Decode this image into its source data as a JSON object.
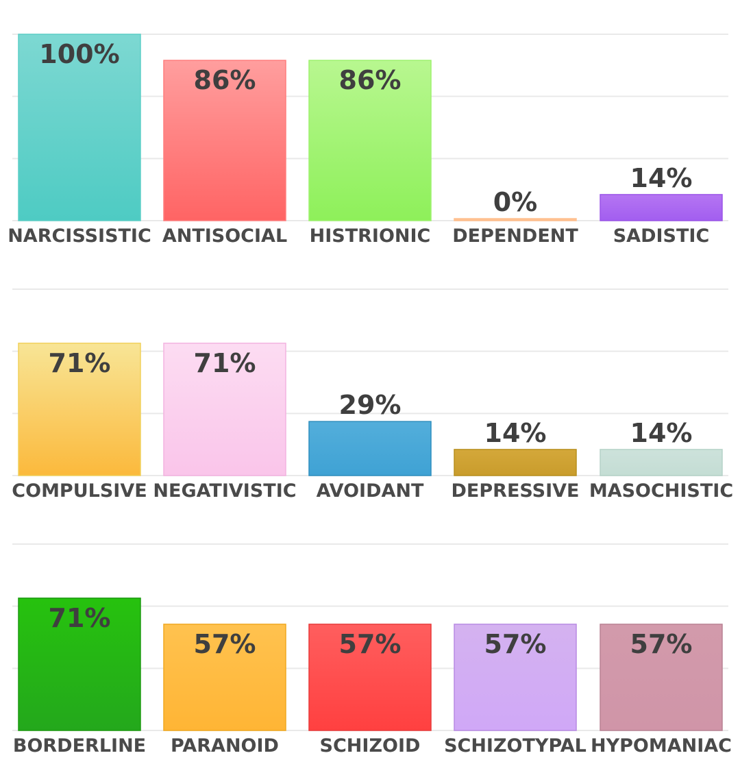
{
  "chart_data": [
    {
      "type": "bar",
      "categories": [
        "NARCISSISTIC",
        "ANTISOCIAL",
        "HISTRIONIC",
        "DEPENDENT",
        "SADISTIC"
      ],
      "values": [
        100,
        86,
        86,
        0,
        14
      ],
      "value_labels": [
        "100%",
        "86%",
        "86%",
        "0%",
        "14%"
      ],
      "colors": [
        [
          "#7dd8d2",
          "#4ecbc3"
        ],
        [
          "#ff9e9e",
          "#ff6464"
        ],
        [
          "#b8f790",
          "#8ef05a"
        ],
        [
          "#ffd0a8",
          "#ffb07a"
        ],
        [
          "#b575f2",
          "#a25ef0"
        ]
      ],
      "border_colors": [
        "#5ccfc7",
        "#ff7d7d",
        "#9ef26e",
        "#ffc08f",
        "#9b55e8"
      ],
      "ylim": [
        0,
        100
      ],
      "grid": true
    },
    {
      "type": "bar",
      "categories": [
        "COMPULSIVE",
        "NEGATIVISTIC",
        "AVOIDANT",
        "DEPRESSIVE",
        "MASOCHISTIC"
      ],
      "values": [
        71,
        71,
        29,
        14,
        14
      ],
      "value_labels": [
        "71%",
        "71%",
        "29%",
        "14%",
        "14%"
      ],
      "colors": [
        [
          "#f8e596",
          "#fbb93c"
        ],
        [
          "#fcdcf2",
          "#fac5ea"
        ],
        [
          "#53aedb",
          "#3fa2d4"
        ],
        [
          "#d4a83a",
          "#c99c2c"
        ],
        [
          "#cde2db",
          "#c4ddd4"
        ]
      ],
      "border_colors": [
        "#f1d15a",
        "#f3b3e0",
        "#2f8fbf",
        "#b8901f",
        "#b5d2c8"
      ],
      "ylim": [
        0,
        100
      ],
      "grid": true
    },
    {
      "type": "bar",
      "categories": [
        "BORDERLINE",
        "PARANOID",
        "SCHIZOID",
        "SCHIZOTYPAL",
        "HYPOMANIAC"
      ],
      "values": [
        71,
        57,
        57,
        57,
        57
      ],
      "value_labels": [
        "71%",
        "57%",
        "57%",
        "57%",
        "57%"
      ],
      "colors": [
        [
          "#26c20e",
          "#24a81c"
        ],
        [
          "#ffc24f",
          "#ffb535"
        ],
        [
          "#ff5e5e",
          "#ff4040"
        ],
        [
          "#d4b2f0",
          "#d0a8f7"
        ],
        [
          "#d29aab",
          "#d095a8"
        ]
      ],
      "border_colors": [
        "#1c9a10",
        "#f0a820",
        "#e83a3a",
        "#b88ae3",
        "#b98294"
      ],
      "ylim": [
        0,
        100
      ],
      "grid": true
    }
  ]
}
